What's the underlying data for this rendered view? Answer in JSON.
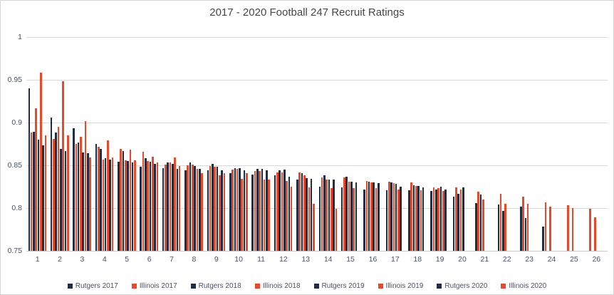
{
  "title": "2017 - 2020 Football 247 Recruit Ratings",
  "colors": {
    "rutgers_navy": "#1e2f45",
    "illinois_orange": "#e8492b",
    "gridline": "#d9d9d9",
    "axis_text": "#4a5264",
    "title_text": "#44464a",
    "border": "#d7d7d7",
    "background": "#ffffff"
  },
  "chart_data": {
    "type": "bar",
    "title": "2017 - 2020 Football 247 Recruit Ratings",
    "xlabel": "",
    "ylabel": "",
    "ylim": [
      0.75,
      1.0
    ],
    "yticks": [
      0.75,
      0.8,
      0.85,
      0.9,
      0.95,
      1
    ],
    "grid": true,
    "legend_position": "bottom",
    "categories": [
      1,
      2,
      3,
      4,
      5,
      6,
      7,
      8,
      9,
      10,
      11,
      12,
      13,
      14,
      15,
      16,
      17,
      18,
      19,
      20,
      21,
      22,
      23,
      24,
      25,
      26
    ],
    "series": [
      {
        "name": "Rutgers 2017",
        "color": "#1e2f45",
        "values": [
          0.94,
          0.906,
          0.893,
          0.875,
          0.854,
          0.848,
          0.847,
          0.844,
          0.844,
          0.841,
          0.839,
          0.838,
          0.833,
          0.825,
          0.824,
          0.822,
          0.821,
          0.821,
          0.82,
          0.813,
          0.806,
          0.804,
          0.802,
          0.778,
          null,
          null
        ]
      },
      {
        "name": "Illinois 2017",
        "color": "#e8492b",
        "values": [
          0.888,
          0.881,
          0.875,
          0.872,
          0.869,
          0.866,
          0.851,
          0.85,
          0.849,
          0.845,
          0.843,
          0.842,
          0.842,
          0.836,
          0.836,
          0.832,
          0.831,
          0.83,
          0.824,
          0.824,
          0.819,
          0.817,
          0.813,
          0.807,
          0.803,
          0.799
        ]
      },
      {
        "name": "Rutgers 2018",
        "color": "#1e2f45",
        "values": [
          0.889,
          0.888,
          0.877,
          0.869,
          0.867,
          0.858,
          0.853,
          0.853,
          0.852,
          0.847,
          0.846,
          0.844,
          0.841,
          0.838,
          0.837,
          0.831,
          0.83,
          0.827,
          0.822,
          0.817,
          0.816,
          0.797,
          0.788,
          null,
          null,
          null
        ]
      },
      {
        "name": "Illinois 2018",
        "color": "#e8492b",
        "values": [
          0.917,
          0.895,
          0.883,
          0.857,
          0.856,
          0.855,
          0.853,
          0.851,
          0.848,
          0.846,
          0.843,
          0.842,
          0.838,
          0.833,
          0.831,
          0.83,
          0.829,
          0.826,
          0.823,
          0.822,
          0.81,
          0.805,
          0.805,
          0.802,
          0.8,
          0.789
        ]
      },
      {
        "name": "Rutgers 2019",
        "color": "#1e2f45",
        "values": [
          0.88,
          0.869,
          0.865,
          0.858,
          0.855,
          0.854,
          0.852,
          0.849,
          0.848,
          0.847,
          0.846,
          0.845,
          0.835,
          0.833,
          0.831,
          0.83,
          0.828,
          0.826,
          0.825,
          0.824,
          null,
          null,
          null,
          null,
          null,
          null
        ]
      },
      {
        "name": "Illinois 2019",
        "color": "#e8492b",
        "values": [
          0.958,
          0.948,
          0.902,
          0.879,
          0.868,
          0.86,
          0.859,
          0.846,
          0.838,
          0.834,
          0.833,
          0.832,
          0.824,
          0.823,
          0.823,
          0.823,
          0.822,
          0.821,
          0.82,
          null,
          null,
          null,
          null,
          null,
          null,
          null
        ]
      },
      {
        "name": "Rutgers 2020",
        "color": "#1e2f45",
        "values": [
          0.873,
          0.867,
          0.864,
          0.857,
          0.853,
          0.852,
          0.846,
          0.846,
          0.844,
          0.844,
          0.844,
          0.837,
          0.834,
          0.833,
          0.83,
          0.829,
          0.825,
          0.824,
          0.822,
          null,
          null,
          null,
          null,
          null,
          null,
          null
        ]
      },
      {
        "name": "Illinois 2020",
        "color": "#e8492b",
        "values": [
          0.885,
          0.885,
          0.859,
          0.859,
          0.856,
          0.853,
          0.849,
          0.841,
          0.841,
          0.841,
          0.833,
          0.825,
          0.805,
          0.799,
          null,
          null,
          null,
          null,
          null,
          null,
          null,
          null,
          null,
          null,
          null,
          null
        ]
      }
    ]
  }
}
